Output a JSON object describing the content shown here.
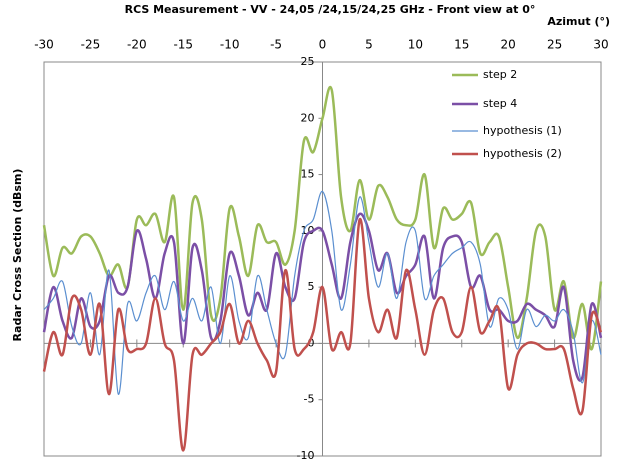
{
  "chart_data": {
    "type": "line",
    "title": "RCS Measurement - VV - 24,05 /24,15/24,25 GHz - Front view at 0°",
    "x_label": "Azimut (°)",
    "y_label": "Radar  Cross Section  (dBsm)",
    "x": [
      -30,
      -29,
      -28,
      -27,
      -26,
      -25,
      -24,
      -23,
      -22,
      -21,
      -20,
      -19,
      -18,
      -17,
      -16,
      -15,
      -14,
      -13,
      -12,
      -11,
      -10,
      -9,
      -8,
      -7,
      -6,
      -5,
      -4,
      -3,
      -2,
      -1,
      0,
      1,
      2,
      3,
      4,
      5,
      6,
      7,
      8,
      9,
      10,
      11,
      12,
      13,
      14,
      15,
      16,
      17,
      18,
      19,
      20,
      21,
      22,
      23,
      24,
      25,
      26,
      27,
      28,
      29,
      30
    ],
    "xlim": [
      -30,
      30
    ],
    "xticks": [
      -30,
      -25,
      -20,
      -15,
      -10,
      -5,
      0,
      5,
      10,
      15,
      20,
      25,
      30
    ],
    "ylim": [
      -10,
      25
    ],
    "yticks": [
      -10,
      -5,
      0,
      5,
      10,
      15,
      20,
      25
    ],
    "grid": false,
    "legend": "upper right",
    "series": [
      {
        "name": "step 2",
        "color": "#9bbb59",
        "values": [
          10.5,
          6,
          8.5,
          8,
          9.5,
          9.5,
          8,
          6,
          7,
          5,
          11,
          10.5,
          11.5,
          9,
          13,
          3,
          12.5,
          11,
          2.5,
          4,
          12,
          9.5,
          6,
          10.5,
          9,
          9,
          7,
          10,
          18,
          17,
          20,
          22.5,
          13,
          10,
          14.5,
          11,
          14,
          13,
          11,
          10.5,
          11,
          15,
          8.5,
          12,
          11,
          11.5,
          12.5,
          8,
          9,
          9.5,
          5,
          0.5,
          4,
          10,
          9.5,
          3,
          5.5,
          0.5,
          3.5,
          -0.5,
          5.5
        ]
      },
      {
        "name": "step 4",
        "color": "#7b4fa6",
        "values": [
          1,
          5,
          2,
          0.5,
          4,
          1.5,
          2,
          6,
          4.5,
          5,
          10,
          7.5,
          4,
          8,
          9,
          0,
          8.5,
          6.5,
          0.5,
          2,
          8,
          6,
          2.5,
          4.5,
          3,
          8,
          5,
          4,
          9,
          10,
          10,
          7,
          4,
          9,
          11.5,
          10,
          6.5,
          8,
          4.5,
          6,
          7,
          9.5,
          4,
          8.5,
          9.5,
          9,
          5,
          6,
          3,
          3,
          2,
          2,
          3.5,
          3,
          2.5,
          1.5,
          5,
          -1.5,
          -3,
          3.5,
          0.5
        ]
      },
      {
        "name": "hypothesis (1)",
        "color": "#5b8fd0",
        "values": [
          3,
          4,
          5.5,
          1.5,
          0,
          4.5,
          -1,
          6.5,
          -4.5,
          3.5,
          2,
          4.5,
          6,
          3,
          5.5,
          2,
          4,
          2,
          5,
          0,
          6,
          2,
          0.5,
          6,
          3,
          0,
          -1,
          6,
          10,
          11,
          13.5,
          10,
          3,
          7,
          13,
          9,
          5,
          8,
          4,
          9,
          10,
          4,
          6,
          7,
          8,
          8.5,
          9,
          7,
          1.5,
          4,
          3,
          -0.5,
          3,
          1.5,
          2.5,
          2,
          3,
          1,
          -3.5,
          2,
          -1
        ]
      },
      {
        "name": "hypothesis (2)",
        "color": "#c0504d",
        "values": [
          -2.5,
          1,
          -1,
          4,
          3,
          -1,
          3.5,
          -4.5,
          3,
          -0.5,
          -0.5,
          0,
          4,
          0,
          -1.5,
          -9.5,
          -1,
          -1,
          0,
          1,
          3.5,
          0,
          2,
          0,
          -1.5,
          -2.5,
          6.5,
          -0.5,
          -0.5,
          1,
          5,
          -0.5,
          1,
          0,
          11,
          4,
          1,
          3,
          0.5,
          6.5,
          3,
          -1,
          3,
          4,
          1,
          1,
          5,
          1,
          2,
          3,
          -4,
          -1,
          0,
          0,
          -0.5,
          -0.5,
          -0.5,
          -4,
          -6,
          2.5,
          1
        ]
      }
    ]
  }
}
